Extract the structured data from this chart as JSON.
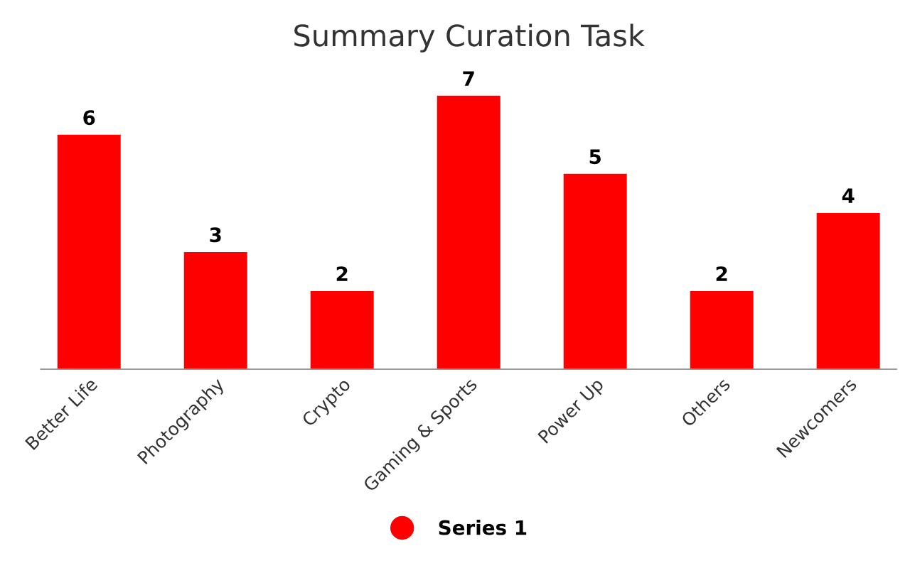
{
  "chart_data": {
    "type": "bar",
    "title": "Summary Curation Task",
    "categories": [
      "Better Life",
      "Photography",
      "Crypto",
      "Gaming & Sports",
      "Power Up",
      "Others",
      "Newcomers"
    ],
    "series": [
      {
        "name": "Series 1",
        "color": "#ff0000",
        "values": [
          6,
          3,
          2,
          7,
          5,
          2,
          4
        ]
      }
    ],
    "data_labels": true,
    "legend": "bottom",
    "grid": false
  }
}
